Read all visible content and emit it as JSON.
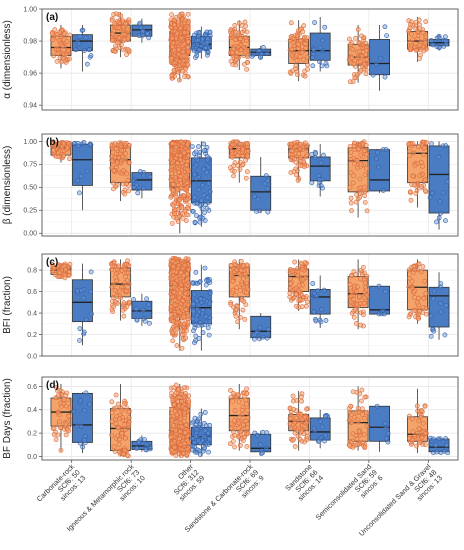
{
  "chart_data": {
    "type": "boxplot",
    "groups": [
      {
        "name": "Carbonate-rock",
        "scf_label": "SCf6: 50",
        "sincos_label": "sincos: 13"
      },
      {
        "name": "Igneous & Metamorphic rock",
        "scf_label": "SCf6: 73",
        "sincos_label": "sincos: 10"
      },
      {
        "name": "Other",
        "scf_label": "SCf6: 312",
        "sincos_label": "sincos: 59"
      },
      {
        "name": "Sandstone & Carbonate-rock",
        "scf_label": "SCf6: 69",
        "sincos_label": "sincos: 9"
      },
      {
        "name": "Sandstone",
        "scf_label": "SCf6: 66",
        "sincos_label": "sincos: 14"
      },
      {
        "name": "Semiconsolidated Sand",
        "scf_label": "SCf6: 59",
        "sincos_label": "sincos: 6"
      },
      {
        "name": "Unconsolidated Sand & Gravel",
        "scf_label": "SCf6: 48",
        "sincos_label": "sincos: 13"
      }
    ],
    "series": [
      {
        "key": "scf",
        "color": "#f4a46a",
        "point_color": "#e0734a"
      },
      {
        "key": "sincos",
        "color": "#4a7cc4",
        "point_color": "#3d6fb6"
      }
    ],
    "panels": [
      {
        "label": "(a)",
        "ylabel": "α (dimensionless)",
        "ylim": [
          0.937,
          1.0
        ],
        "yticks": [
          0.94,
          0.96,
          0.98,
          1.0
        ],
        "ytick_labels": [
          "0.94",
          "0.96",
          "0.98",
          "1.00"
        ],
        "boxes": [
          [
            [
              0.963,
              0.971,
              0.976,
              0.983,
              0.99
            ],
            [
              0.961,
              0.974,
              0.98,
              0.984,
              0.99
            ]
          ],
          [
            [
              0.97,
              0.98,
              0.985,
              0.99,
              0.998
            ],
            [
              0.979,
              0.983,
              0.987,
              0.99,
              0.994
            ]
          ],
          [
            [
              0.955,
              0.971,
              0.979,
              0.986,
              0.998
            ],
            [
              0.969,
              0.975,
              0.978,
              0.983,
              0.989
            ]
          ],
          [
            [
              0.962,
              0.971,
              0.976,
              0.983,
              0.993
            ],
            [
              0.969,
              0.971,
              0.973,
              0.975,
              0.977
            ]
          ],
          [
            [
              0.955,
              0.966,
              0.974,
              0.981,
              0.993
            ],
            [
              0.961,
              0.968,
              0.974,
              0.985,
              0.995
            ]
          ],
          [
            [
              0.954,
              0.965,
              0.97,
              0.978,
              0.99
            ],
            [
              0.949,
              0.959,
              0.966,
              0.981,
              0.99
            ]
          ],
          [
            [
              0.967,
              0.975,
              0.98,
              0.986,
              0.995
            ],
            [
              0.974,
              0.977,
              0.979,
              0.981,
              0.984
            ]
          ]
        ]
      },
      {
        "label": "(b)",
        "ylabel": "β (dimensionless)",
        "ylim": [
          -0.03,
          1.08
        ],
        "yticks": [
          0.0,
          0.25,
          0.5,
          0.75,
          1.0
        ],
        "ytick_labels": [
          "0.00",
          "0.25",
          "0.50",
          "0.75",
          "1.00"
        ],
        "boxes": [
          [
            [
              0.77,
              0.85,
              0.93,
              0.97,
              1.0
            ],
            [
              0.25,
              0.52,
              0.8,
              0.97,
              1.0
            ]
          ],
          [
            [
              0.35,
              0.55,
              0.8,
              0.95,
              1.0
            ],
            [
              0.38,
              0.47,
              0.58,
              0.66,
              0.68
            ]
          ],
          [
            [
              0.0,
              0.5,
              0.82,
              0.96,
              1.0
            ],
            [
              0.07,
              0.33,
              0.57,
              0.82,
              1.0
            ]
          ],
          [
            [
              0.55,
              0.82,
              0.92,
              0.96,
              1.0
            ],
            [
              0.22,
              0.25,
              0.45,
              0.62,
              0.83
            ]
          ],
          [
            [
              0.56,
              0.82,
              0.92,
              0.96,
              1.0
            ],
            [
              0.4,
              0.57,
              0.73,
              0.83,
              0.97
            ]
          ],
          [
            [
              0.17,
              0.45,
              0.79,
              0.93,
              1.0
            ],
            [
              0.44,
              0.46,
              0.58,
              0.91,
              0.91
            ]
          ],
          [
            [
              0.28,
              0.55,
              0.87,
              0.96,
              1.0
            ],
            [
              0.04,
              0.22,
              0.64,
              0.95,
              1.0
            ]
          ]
        ]
      },
      {
        "label": "(c)",
        "ylabel": "BFI (fraction)",
        "ylim": [
          0.0,
          0.95
        ],
        "yticks": [
          0.0,
          0.2,
          0.4,
          0.6,
          0.8
        ],
        "ytick_labels": [
          "0.0",
          "0.2",
          "0.4",
          "0.6",
          "0.8"
        ],
        "boxes": [
          [
            [
              0.72,
              0.76,
              0.8,
              0.83,
              0.86
            ],
            [
              0.1,
              0.32,
              0.5,
              0.71,
              0.86
            ]
          ],
          [
            [
              0.33,
              0.55,
              0.67,
              0.82,
              0.9
            ],
            [
              0.28,
              0.35,
              0.42,
              0.51,
              0.58
            ]
          ],
          [
            [
              0.05,
              0.4,
              0.65,
              0.83,
              0.92
            ],
            [
              0.05,
              0.3,
              0.45,
              0.61,
              0.85
            ]
          ],
          [
            [
              0.25,
              0.55,
              0.75,
              0.83,
              0.9
            ],
            [
              0.15,
              0.17,
              0.23,
              0.37,
              0.4
            ]
          ],
          [
            [
              0.42,
              0.6,
              0.74,
              0.81,
              0.9
            ],
            [
              0.26,
              0.39,
              0.55,
              0.62,
              0.75
            ]
          ],
          [
            [
              0.25,
              0.45,
              0.58,
              0.74,
              0.9
            ],
            [
              0.38,
              0.39,
              0.43,
              0.65,
              0.65
            ]
          ],
          [
            [
              0.3,
              0.43,
              0.64,
              0.8,
              0.9
            ],
            [
              0.15,
              0.27,
              0.56,
              0.64,
              0.78
            ]
          ]
        ]
      },
      {
        "label": "(d)",
        "ylabel": "BF Days (fraction)",
        "ylim": [
          -0.03,
          0.68
        ],
        "yticks": [
          0.0,
          0.2,
          0.4,
          0.6
        ],
        "ytick_labels": [
          "0.0",
          "0.2",
          "0.4",
          "0.6"
        ],
        "boxes": [
          [
            [
              0.04,
              0.26,
              0.38,
              0.5,
              0.62
            ],
            [
              0.03,
              0.12,
              0.27,
              0.54,
              0.55
            ]
          ],
          [
            [
              0.0,
              0.05,
              0.24,
              0.41,
              0.62
            ],
            [
              0.04,
              0.06,
              0.09,
              0.13,
              0.18
            ]
          ],
          [
            [
              0.0,
              0.08,
              0.22,
              0.42,
              0.62
            ],
            [
              0.0,
              0.1,
              0.17,
              0.25,
              0.41
            ]
          ],
          [
            [
              0.05,
              0.22,
              0.35,
              0.5,
              0.62
            ],
            [
              0.01,
              0.04,
              0.07,
              0.19,
              0.22
            ]
          ],
          [
            [
              0.05,
              0.22,
              0.3,
              0.36,
              0.56
            ],
            [
              0.07,
              0.14,
              0.21,
              0.33,
              0.4
            ]
          ],
          [
            [
              0.05,
              0.13,
              0.29,
              0.39,
              0.6
            ],
            [
              0.04,
              0.13,
              0.25,
              0.43,
              0.43
            ]
          ],
          [
            [
              0.03,
              0.13,
              0.19,
              0.34,
              0.58
            ],
            [
              0.02,
              0.04,
              0.08,
              0.15,
              0.16
            ]
          ]
        ]
      }
    ],
    "grid": true,
    "panel_border": true,
    "jitter_points": true
  }
}
